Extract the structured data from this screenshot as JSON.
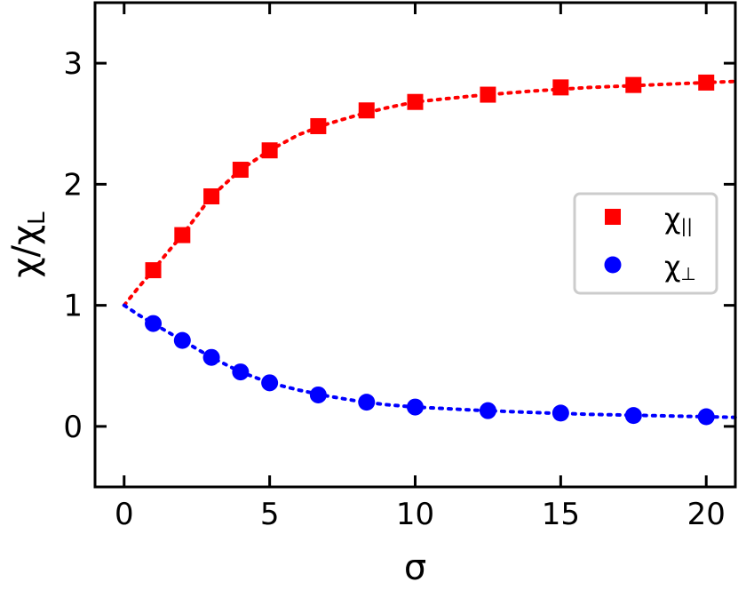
{
  "chart_data": {
    "type": "scatter",
    "xlabel": "σ",
    "ylabel": "χ/χ",
    "ylabel_sub": "L",
    "xlim": [
      -1,
      21
    ],
    "ylim": [
      -0.5,
      3.5
    ],
    "xticks": [
      0,
      5,
      10,
      15,
      20
    ],
    "yticks": [
      0,
      1,
      2,
      3
    ],
    "grid": false,
    "legend_position": "center-right",
    "series": [
      {
        "name": "χ",
        "name_sub": "||",
        "marker": "square",
        "color": "#ff0000",
        "x": [
          1,
          2,
          3,
          4,
          5,
          6.67,
          8.33,
          10,
          12.5,
          15,
          17.5,
          20
        ],
        "y": [
          1.29,
          1.58,
          1.9,
          2.12,
          2.28,
          2.48,
          2.61,
          2.68,
          2.74,
          2.8,
          2.82,
          2.84
        ],
        "fit_x": [
          0,
          0.5,
          1,
          1.5,
          2,
          3,
          4,
          5,
          6,
          7,
          8,
          9,
          10,
          12,
          14,
          16,
          18,
          20,
          21
        ],
        "fit_y": [
          1,
          1.15,
          1.29,
          1.44,
          1.58,
          1.9,
          2.12,
          2.28,
          2.41,
          2.5,
          2.57,
          2.63,
          2.68,
          2.73,
          2.77,
          2.8,
          2.82,
          2.84,
          2.85
        ]
      },
      {
        "name": "χ",
        "name_sub": "⊥",
        "marker": "circle",
        "color": "#0000ff",
        "x": [
          1,
          2,
          3,
          4,
          5,
          6.67,
          8.33,
          10,
          12.5,
          15,
          17.5,
          20
        ],
        "y": [
          0.85,
          0.71,
          0.57,
          0.45,
          0.36,
          0.26,
          0.2,
          0.16,
          0.13,
          0.11,
          0.09,
          0.08
        ],
        "fit_x": [
          0,
          0.5,
          1,
          1.5,
          2,
          3,
          4,
          5,
          6,
          7,
          8,
          9,
          10,
          12,
          14,
          16,
          18,
          20,
          21
        ],
        "fit_y": [
          1,
          0.92,
          0.85,
          0.78,
          0.71,
          0.57,
          0.45,
          0.36,
          0.3,
          0.25,
          0.21,
          0.18,
          0.16,
          0.135,
          0.115,
          0.1,
          0.09,
          0.08,
          0.075
        ]
      }
    ]
  }
}
